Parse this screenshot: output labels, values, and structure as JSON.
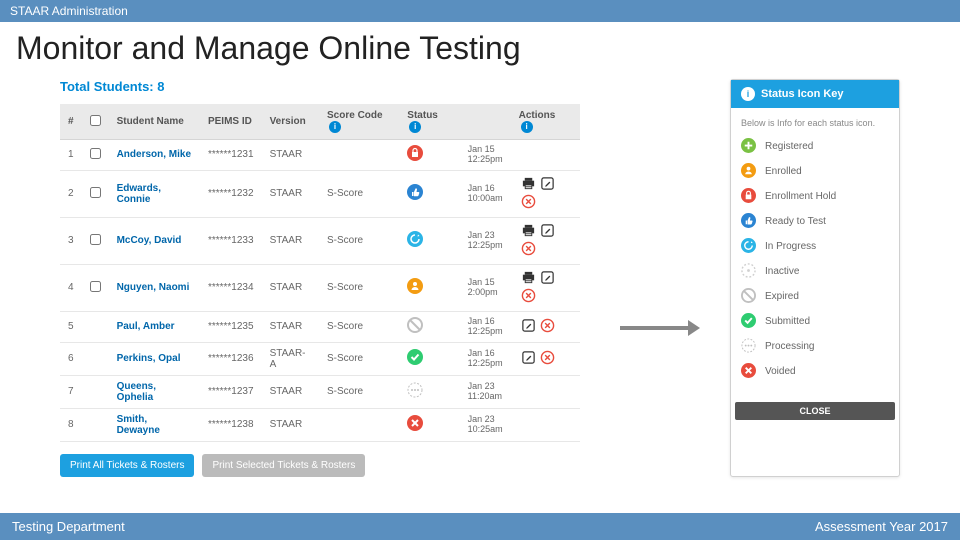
{
  "top_bar": {
    "text": "STAAR Administration"
  },
  "slide": {
    "title": "Monitor and Manage Online Testing"
  },
  "panel": {
    "total_students_label": "Total Students: 8",
    "columns": {
      "num": "#",
      "name": "Student Name",
      "peims": "PEIMS ID",
      "version": "Version",
      "score_code": "Score Code",
      "status": "Status",
      "actions": "Actions"
    },
    "rows": [
      {
        "num": "1",
        "name": "Anderson, Mike",
        "peims": "******1231",
        "version": "STAAR",
        "score": "",
        "status_color": "#e84c3d",
        "status_glyph": "lock",
        "date1": "Jan 15",
        "date2": "12:25pm",
        "checkbox": true,
        "actions": []
      },
      {
        "num": "2",
        "name": "Edwards, Connie",
        "peims": "******1232",
        "version": "STAAR",
        "score": "S-Score",
        "status_color": "#2b84d2",
        "status_glyph": "thumb",
        "date1": "Jan 16",
        "date2": "10:00am",
        "checkbox": true,
        "actions": [
          "print",
          "edit",
          "delete"
        ]
      },
      {
        "num": "3",
        "name": "McCoy, David",
        "peims": "******1233",
        "version": "STAAR",
        "score": "S-Score",
        "status_color": "#2bb4e6",
        "status_glyph": "refresh",
        "date1": "Jan 23",
        "date2": "12:25pm",
        "checkbox": true,
        "actions": [
          "print",
          "edit",
          "delete"
        ]
      },
      {
        "num": "4",
        "name": "Nguyen, Naomi",
        "peims": "******1234",
        "version": "STAAR",
        "score": "S-Score",
        "status_color": "#f39c12",
        "status_glyph": "person",
        "date1": "Jan 15",
        "date2": "2:00pm",
        "checkbox": true,
        "actions": [
          "print",
          "edit",
          "delete"
        ]
      },
      {
        "num": "5",
        "name": "Paul, Amber",
        "peims": "******1235",
        "version": "STAAR",
        "score": "S-Score",
        "status_color": "#c0c0c0",
        "status_glyph": "slash",
        "date1": "Jan 16",
        "date2": "12:25pm",
        "checkbox": false,
        "actions": [
          "edit",
          "delete"
        ]
      },
      {
        "num": "6",
        "name": "Perkins, Opal",
        "peims": "******1236",
        "version": "STAAR-A",
        "score": "S-Score",
        "status_color": "#2ecc71",
        "status_glyph": "check",
        "date1": "Jan 16",
        "date2": "12:25pm",
        "checkbox": false,
        "actions": [
          "edit",
          "delete"
        ]
      },
      {
        "num": "7",
        "name": "Queens, Ophelia",
        "peims": "******1237",
        "version": "STAAR",
        "score": "S-Score",
        "status_color": "#c0c0c0",
        "status_glyph": "dots",
        "date1": "Jan 23",
        "date2": "11:20am",
        "checkbox": false,
        "actions": []
      },
      {
        "num": "8",
        "name": "Smith, Dewayne",
        "peims": "******1238",
        "version": "STAAR",
        "score": "",
        "status_color": "#e84c3d",
        "status_glyph": "x",
        "date1": "Jan 23",
        "date2": "10:25am",
        "checkbox": false,
        "actions": []
      }
    ],
    "buttons": {
      "print_all": "Print All Tickets & Rosters",
      "print_sel": "Print Selected Tickets & Rosters"
    }
  },
  "key": {
    "title": "Status Icon Key",
    "desc": "Below is Info for each status icon.",
    "items": [
      {
        "label": "Registered",
        "color": "#7ac143",
        "glyph": "plus"
      },
      {
        "label": "Enrolled",
        "color": "#f39c12",
        "glyph": "person"
      },
      {
        "label": "Enrollment Hold",
        "color": "#e84c3d",
        "glyph": "lock"
      },
      {
        "label": "Ready to Test",
        "color": "#2b84d2",
        "glyph": "thumb"
      },
      {
        "label": "In Progress",
        "color": "#2bb4e6",
        "glyph": "refresh"
      },
      {
        "label": "Inactive",
        "color": "#d0d0d0",
        "glyph": "dashcircle"
      },
      {
        "label": "Expired",
        "color": "#c0c0c0",
        "glyph": "slash"
      },
      {
        "label": "Submitted",
        "color": "#2ecc71",
        "glyph": "check"
      },
      {
        "label": "Processing",
        "color": "#c0c0c0",
        "glyph": "dots"
      },
      {
        "label": "Voided",
        "color": "#e84c3d",
        "glyph": "x"
      }
    ],
    "close": "CLOSE"
  },
  "bottom_bar": {
    "left": "Testing Department",
    "right": "Assessment Year 2017"
  }
}
